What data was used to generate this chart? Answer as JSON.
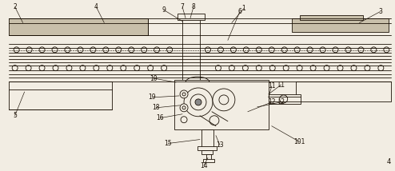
{
  "bg_color": "#f2ede3",
  "line_color": "#1a1005",
  "fig_width": 4.94,
  "fig_height": 2.14,
  "dpi": 100
}
